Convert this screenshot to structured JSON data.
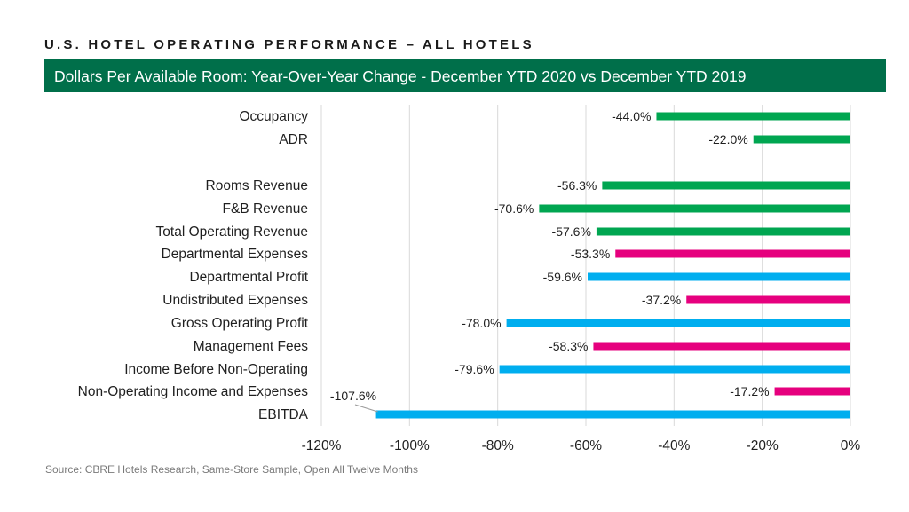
{
  "header": {
    "title": "U.S. HOTEL OPERATING PERFORMANCE – ALL HOTELS",
    "banner": "Dollars Per Available Room:  Year-Over-Year Change - December YTD 2020 vs December YTD 2019"
  },
  "footer": {
    "source": "Source: CBRE Hotels Research, Same-Store Sample, Open All Twelve Months"
  },
  "colors": {
    "banner": "#006f4a",
    "revenue": "#00a651",
    "expense": "#e6007e",
    "profit": "#00aeef",
    "grid": "#d9d9d9"
  },
  "chart_data": {
    "type": "bar",
    "orientation": "horizontal",
    "title": "Dollars Per Available Room:  Year-Over-Year Change - December YTD 2020 vs December YTD 2019",
    "xlabel": "",
    "ylabel": "",
    "xlim": [
      -120,
      0
    ],
    "x_ticks": [
      -120,
      -100,
      -80,
      -60,
      -40,
      -20,
      0
    ],
    "x_tick_labels": [
      "-120%",
      "-100%",
      "-80%",
      "-60%",
      "-40%",
      "-20%",
      "0%"
    ],
    "grid": true,
    "legend": "none",
    "bars": [
      {
        "category": "Occupancy",
        "value": -44.0,
        "label": "-44.0%",
        "group": "revenue"
      },
      {
        "category": "ADR",
        "value": -22.0,
        "label": "-22.0%",
        "group": "revenue"
      },
      {
        "category": "Rooms Revenue",
        "value": -56.3,
        "label": "-56.3%",
        "group": "revenue"
      },
      {
        "category": "F&B Revenue",
        "value": -70.6,
        "label": "-70.6%",
        "group": "revenue"
      },
      {
        "category": "Total Operating Revenue",
        "value": -57.6,
        "label": "-57.6%",
        "group": "revenue"
      },
      {
        "category": "Departmental Expenses",
        "value": -53.3,
        "label": "-53.3%",
        "group": "expense"
      },
      {
        "category": "Departmental Profit",
        "value": -59.6,
        "label": "-59.6%",
        "group": "profit"
      },
      {
        "category": "Undistributed Expenses",
        "value": -37.2,
        "label": "-37.2%",
        "group": "expense"
      },
      {
        "category": "Gross Operating Profit",
        "value": -78.0,
        "label": "-78.0%",
        "group": "profit"
      },
      {
        "category": "Management Fees",
        "value": -58.3,
        "label": "-58.3%",
        "group": "expense"
      },
      {
        "category": "Income Before Non-Operating",
        "value": -79.6,
        "label": "-79.6%",
        "group": "profit"
      },
      {
        "category": "Non-Operating Income and Expenses",
        "value": -17.2,
        "label": "-17.2%",
        "group": "expense"
      },
      {
        "category": "EBITDA",
        "value": -107.6,
        "label": "-107.6%",
        "group": "profit"
      }
    ]
  }
}
